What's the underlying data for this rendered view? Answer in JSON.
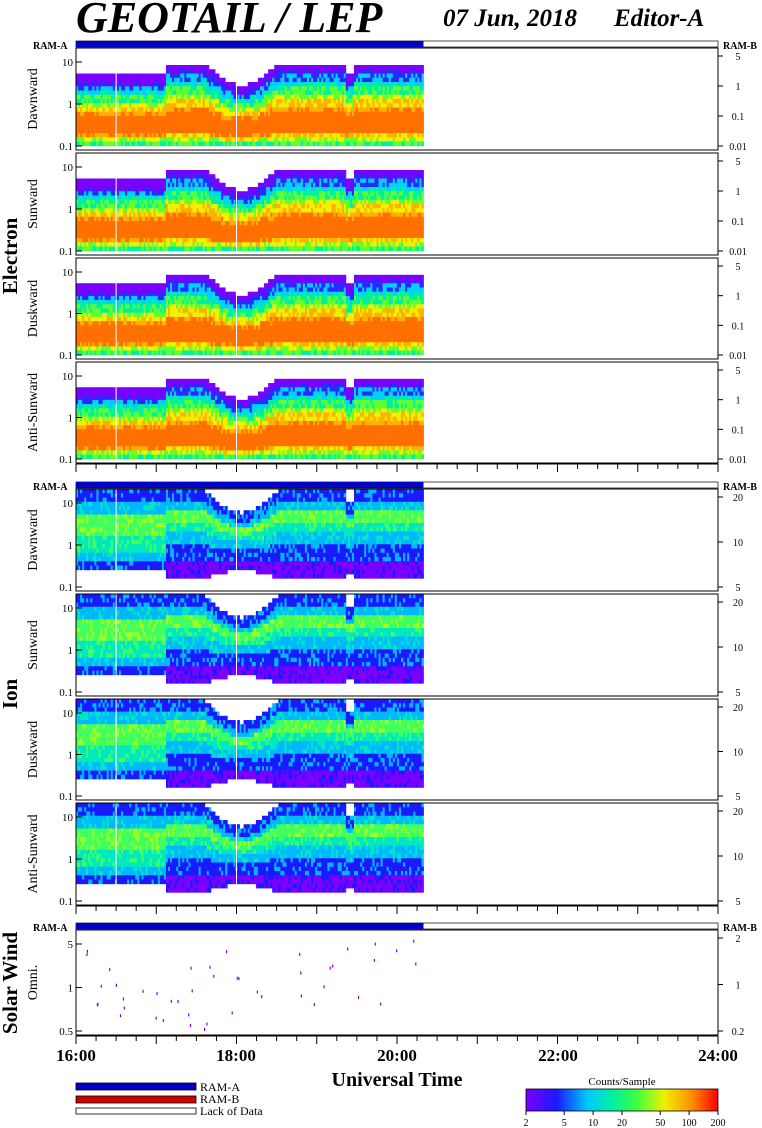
{
  "header": {
    "title": "GEOTAIL / LEP",
    "date": "07 Jun, 2018",
    "editor": "Editor-A"
  },
  "ram_labels": {
    "a": "RAM-A",
    "b": "RAM-B"
  },
  "colors": {
    "ram_a": "#0000c8",
    "ram_b": "#d00000",
    "lack": "#ffffff"
  },
  "legend": {
    "items": [
      {
        "label": "RAM-A",
        "color": "#0000c8"
      },
      {
        "label": "RAM-B",
        "color": "#d00000"
      },
      {
        "label": "Lack of Data",
        "color": "#ffffff"
      }
    ]
  },
  "colorbar": {
    "title": "Counts/Sample",
    "ticks": [
      "2",
      "5",
      "10",
      "20",
      "50",
      "100",
      "200"
    ],
    "range": [
      2,
      200
    ],
    "scale": "log"
  },
  "chart_data": {
    "type": "heatmap",
    "xlabel": "Universal Time",
    "x_ticks": [
      "16:00",
      "18:00",
      "20:00",
      "22:00",
      "24:00"
    ],
    "x_range_hours": [
      16,
      24
    ],
    "data_coverage_hours": [
      16,
      20.33
    ],
    "groups": [
      {
        "name": "Electron",
        "panels": [
          {
            "label": "Dawnward",
            "left_ticks": [
              "10",
              "1",
              "0.1"
            ],
            "right_ticks": [
              "5",
              "1",
              "0.1",
              "0.01"
            ]
          },
          {
            "label": "Sunward",
            "left_ticks": [
              "10",
              "1",
              "0.1"
            ],
            "right_ticks": [
              "5",
              "1",
              "0.1",
              "0.01"
            ]
          },
          {
            "label": "Duskward",
            "left_ticks": [
              "10",
              "1",
              "0.1"
            ],
            "right_ticks": [
              "5",
              "1",
              "0.1",
              "0.01"
            ]
          },
          {
            "label": "Anti-Sunward",
            "left_ticks": [
              "10",
              "1",
              "0.1"
            ],
            "right_ticks": [
              "5",
              "1",
              "0.1",
              "0.01"
            ]
          }
        ]
      },
      {
        "name": "Ion",
        "panels": [
          {
            "label": "Dawnward",
            "left_ticks": [
              "10",
              "1",
              "0.1"
            ],
            "right_ticks": [
              "20",
              "10",
              "5"
            ]
          },
          {
            "label": "Sunward",
            "left_ticks": [
              "10",
              "1",
              "0.1"
            ],
            "right_ticks": [
              "20",
              "10",
              "5"
            ]
          },
          {
            "label": "Duskward",
            "left_ticks": [
              "10",
              "1",
              "0.1"
            ],
            "right_ticks": [
              "20",
              "10",
              "5"
            ]
          },
          {
            "label": "Anti-Sunward",
            "left_ticks": [
              "10",
              "1",
              "0.1"
            ],
            "right_ticks": [
              "20",
              "10",
              "5"
            ]
          }
        ]
      },
      {
        "name": "Solar Wind",
        "panels": [
          {
            "label": "Omni.",
            "left_ticks": [
              "5",
              "1",
              "0.5"
            ],
            "right_ticks": [
              "2",
              "1",
              "0.2"
            ]
          }
        ]
      }
    ]
  }
}
